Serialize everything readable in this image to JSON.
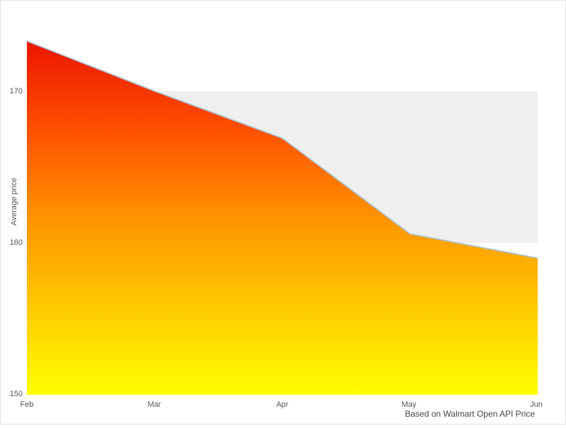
{
  "chart_data": {
    "type": "area",
    "categories": [
      "Feb",
      "Mar",
      "Apr",
      "May",
      "Jun"
    ],
    "values": [
      173.3,
      170.0,
      166.9,
      160.6,
      159.0
    ],
    "title": "",
    "xlabel": "",
    "ylabel": "Average price",
    "yticks": [
      "150",
      "160",
      "170"
    ],
    "ylim": [
      150,
      175.4
    ],
    "band": {
      "from": 160,
      "to": 170,
      "color": "#efefef"
    },
    "line_color": "#a9c4d6",
    "gradient_stops": [
      "#ec1400",
      "#ff5000",
      "#ff9300",
      "#ffc900",
      "#ffff00"
    ],
    "caption": "Based on Walmart Open API Price",
    "legend": "none",
    "grid": "horizontal-band"
  }
}
